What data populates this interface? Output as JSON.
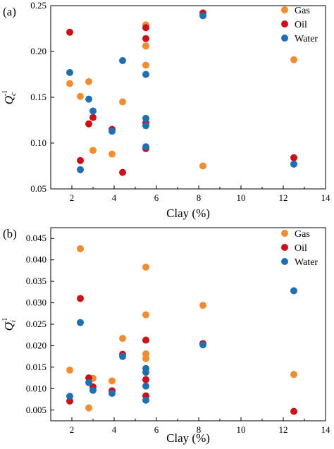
{
  "colors": {
    "gas": "#f28c30",
    "oil": "#cc1018",
    "water": "#1f6fb2",
    "axis": "#000000"
  },
  "chart_data": [
    {
      "type": "scatter",
      "panel_label": "(a)",
      "ylabel_symbol": "Q",
      "ylabel_sup": "-1",
      "ylabel_sub": "c",
      "xlabel": "Clay (%)",
      "xlim": [
        1,
        14
      ],
      "ylim": [
        0.05,
        0.25
      ],
      "xticks": [
        2,
        4,
        6,
        8,
        10,
        12,
        14
      ],
      "xtick_labels": [
        "2",
        "4",
        "6",
        "8",
        "10",
        "12",
        "14"
      ],
      "yticks": [
        0.05,
        0.1,
        0.15,
        0.2,
        0.25
      ],
      "ytick_labels": [
        "0.05",
        "0.10",
        "0.15",
        "0.20",
        "0.25"
      ],
      "legend_position": "top-right",
      "series": [
        {
          "name": "Gas",
          "color_key": "gas",
          "x": [
            1.9,
            2.4,
            2.8,
            3.0,
            3.9,
            4.4,
            5.5,
            5.5,
            5.5,
            8.2,
            12.5
          ],
          "y": [
            0.165,
            0.151,
            0.167,
            0.092,
            0.088,
            0.145,
            0.229,
            0.206,
            0.185,
            0.075,
            0.191
          ]
        },
        {
          "name": "Oil",
          "color_key": "oil",
          "x": [
            1.9,
            2.4,
            2.8,
            3.0,
            3.9,
            4.4,
            5.5,
            5.5,
            5.5,
            5.5,
            8.2,
            12.5
          ],
          "y": [
            0.221,
            0.081,
            0.121,
            0.128,
            0.115,
            0.068,
            0.226,
            0.214,
            0.122,
            0.094,
            0.242,
            0.084
          ]
        },
        {
          "name": "Water",
          "color_key": "water",
          "x": [
            1.9,
            2.4,
            2.8,
            3.0,
            3.9,
            4.4,
            5.5,
            5.5,
            5.5,
            5.5,
            8.2,
            12.5
          ],
          "y": [
            0.177,
            0.071,
            0.148,
            0.135,
            0.113,
            0.19,
            0.175,
            0.127,
            0.119,
            0.096,
            0.239,
            0.077
          ]
        }
      ]
    },
    {
      "type": "scatter",
      "panel_label": "(b)",
      "ylabel_symbol": "Q",
      "ylabel_sup": "-1",
      "ylabel_sub": "i",
      "xlabel": "Clay (%)",
      "xlim": [
        1,
        14
      ],
      "ylim": [
        0.0025,
        0.0475
      ],
      "xticks": [
        2,
        4,
        6,
        8,
        10,
        12,
        14
      ],
      "xtick_labels": [
        "2",
        "4",
        "6",
        "8",
        "10",
        "12",
        "14"
      ],
      "yticks": [
        0.005,
        0.01,
        0.015,
        0.02,
        0.025,
        0.03,
        0.035,
        0.04,
        0.045
      ],
      "ytick_labels": [
        "0.005",
        "0.010",
        "0.015",
        "0.020",
        "0.025",
        "0.030",
        "0.035",
        "0.040",
        "0.045"
      ],
      "legend_position": "top-right",
      "series": [
        {
          "name": "Gas",
          "color_key": "gas",
          "x": [
            1.9,
            2.4,
            2.8,
            3.0,
            3.9,
            4.4,
            5.5,
            5.5,
            5.5,
            5.5,
            8.2,
            12.5
          ],
          "y": [
            0.0143,
            0.0426,
            0.0055,
            0.0124,
            0.0118,
            0.0217,
            0.0383,
            0.0272,
            0.0181,
            0.017,
            0.0294,
            0.0133
          ]
        },
        {
          "name": "Oil",
          "color_key": "oil",
          "x": [
            1.9,
            2.4,
            2.8,
            3.0,
            3.9,
            4.4,
            5.5,
            5.5,
            5.5,
            8.2,
            12.5
          ],
          "y": [
            0.0071,
            0.031,
            0.0125,
            0.0104,
            0.0095,
            0.018,
            0.0213,
            0.0121,
            0.0083,
            0.0205,
            0.0047
          ]
        },
        {
          "name": "Water",
          "color_key": "water",
          "x": [
            1.9,
            2.4,
            2.8,
            3.0,
            3.9,
            4.4,
            5.5,
            5.5,
            5.5,
            5.5,
            8.2,
            12.5
          ],
          "y": [
            0.0082,
            0.0254,
            0.0114,
            0.0096,
            0.0089,
            0.0175,
            0.0147,
            0.0138,
            0.0106,
            0.0073,
            0.0202,
            0.0328
          ]
        }
      ]
    }
  ]
}
